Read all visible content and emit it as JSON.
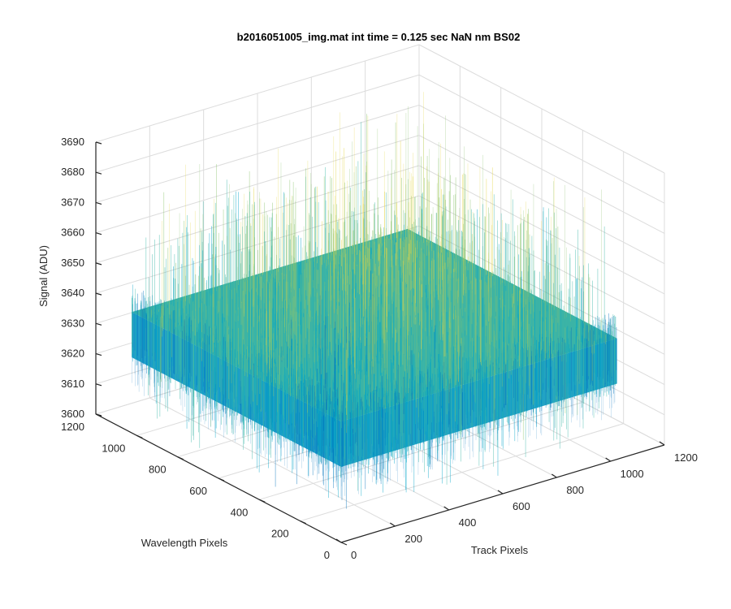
{
  "chart_data": {
    "type": "surface",
    "title": "b2016051005_img.mat int time = 0.125 sec  NaN nm BS02",
    "xlabel": "Track Pixels",
    "ylabel": "Wavelength Pixels",
    "zlabel": "Signal (ADU)",
    "xlim": [
      0,
      1200
    ],
    "ylim": [
      0,
      1200
    ],
    "zlim": [
      3600,
      3690
    ],
    "x_ticks": [
      0,
      200,
      400,
      600,
      800,
      1000,
      1200
    ],
    "y_ticks": [
      0,
      200,
      400,
      600,
      800,
      1000,
      1200
    ],
    "z_ticks": [
      3600,
      3610,
      3620,
      3630,
      3640,
      3650,
      3660,
      3670,
      3680,
      3690
    ],
    "surface_extent": {
      "x": [
        0,
        1024
      ],
      "y": [
        0,
        1024
      ]
    },
    "signal_mean": 3640,
    "signal_range": [
      3605,
      3685
    ],
    "grid": true,
    "view": "3d",
    "colormap": [
      "#0072BD",
      "#00A3C8",
      "#3CB8A8",
      "#8CC46E",
      "#E5D548"
    ]
  }
}
